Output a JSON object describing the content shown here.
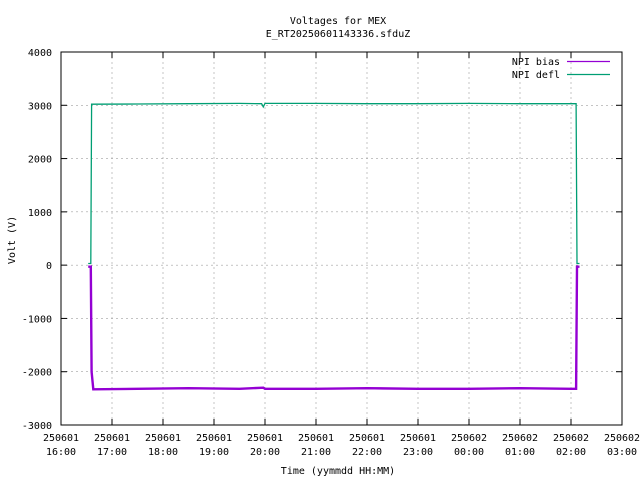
{
  "chart_data": {
    "type": "line",
    "title": "Voltages for MEX",
    "subtitle": "E_RT20250601143336.sfduZ",
    "xlabel": "Time (yymmdd HH:MM)",
    "ylabel": "Volt (V)",
    "xlim": [
      "2025-06-01 16:00",
      "2025-06-02 03:00"
    ],
    "ylim": [
      -3000,
      4000
    ],
    "grid": true,
    "legend_position": "top-right",
    "x_ticks": [
      {
        "date": "250601",
        "time": "16:00"
      },
      {
        "date": "250601",
        "time": "17:00"
      },
      {
        "date": "250601",
        "time": "18:00"
      },
      {
        "date": "250601",
        "time": "19:00"
      },
      {
        "date": "250601",
        "time": "20:00"
      },
      {
        "date": "250601",
        "time": "21:00"
      },
      {
        "date": "250601",
        "time": "22:00"
      },
      {
        "date": "250601",
        "time": "23:00"
      },
      {
        "date": "250602",
        "time": "00:00"
      },
      {
        "date": "250602",
        "time": "01:00"
      },
      {
        "date": "250602",
        "time": "02:00"
      },
      {
        "date": "250602",
        "time": "03:00"
      }
    ],
    "y_ticks": [
      -3000,
      -2000,
      -1000,
      0,
      1000,
      2000,
      3000,
      4000
    ],
    "series": [
      {
        "name": "NPI bias",
        "color": "#9400d3",
        "points": [
          [
            "2025-06-01 16:32",
            -30
          ],
          [
            "2025-06-01 16:35",
            -30
          ],
          [
            "2025-06-01 16:36",
            -2000
          ],
          [
            "2025-06-01 16:38",
            -2330
          ],
          [
            "2025-06-01 17:30",
            -2320
          ],
          [
            "2025-06-01 18:30",
            -2310
          ],
          [
            "2025-06-01 19:30",
            -2320
          ],
          [
            "2025-06-01 19:58",
            -2300
          ],
          [
            "2025-06-01 20:00",
            -2320
          ],
          [
            "2025-06-01 21:00",
            -2320
          ],
          [
            "2025-06-01 22:00",
            -2310
          ],
          [
            "2025-06-01 23:00",
            -2320
          ],
          [
            "2025-06-02 00:00",
            -2320
          ],
          [
            "2025-06-02 01:00",
            -2310
          ],
          [
            "2025-06-02 02:00",
            -2320
          ],
          [
            "2025-06-02 02:06",
            -2320
          ],
          [
            "2025-06-02 02:07",
            -30
          ],
          [
            "2025-06-02 02:10",
            -30
          ]
        ]
      },
      {
        "name": "NPI defl",
        "color": "#009e73",
        "points": [
          [
            "2025-06-01 16:32",
            30
          ],
          [
            "2025-06-01 16:35",
            30
          ],
          [
            "2025-06-01 16:36",
            3020
          ],
          [
            "2025-06-01 17:30",
            3025
          ],
          [
            "2025-06-01 18:30",
            3030
          ],
          [
            "2025-06-01 19:30",
            3035
          ],
          [
            "2025-06-01 19:56",
            3030
          ],
          [
            "2025-06-01 19:58",
            2970
          ],
          [
            "2025-06-01 20:00",
            3035
          ],
          [
            "2025-06-01 21:00",
            3035
          ],
          [
            "2025-06-01 22:00",
            3030
          ],
          [
            "2025-06-01 23:00",
            3030
          ],
          [
            "2025-06-02 00:00",
            3035
          ],
          [
            "2025-06-02 01:00",
            3030
          ],
          [
            "2025-06-02 02:00",
            3030
          ],
          [
            "2025-06-02 02:06",
            3030
          ],
          [
            "2025-06-02 02:07",
            30
          ],
          [
            "2025-06-02 02:10",
            30
          ]
        ]
      }
    ]
  }
}
